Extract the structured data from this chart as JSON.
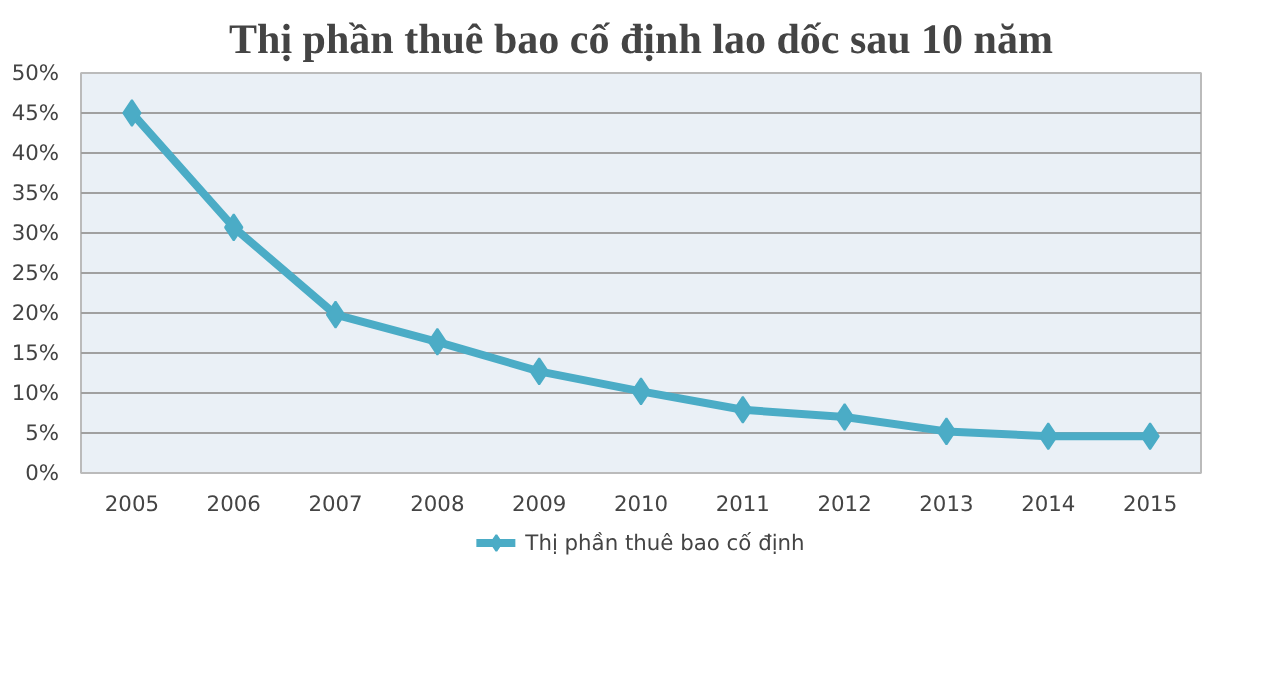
{
  "chart_data": {
    "type": "line",
    "title": "Thị phần thuê bao cố định lao dốc sau 10 năm",
    "categories": [
      "2005",
      "2006",
      "2007",
      "2008",
      "2009",
      "2010",
      "2011",
      "2012",
      "2013",
      "2014",
      "2015"
    ],
    "series": [
      {
        "name": "Thị phần thuê bao cố định",
        "color": "#4bacc6",
        "values": [
          45,
          30.7,
          19.8,
          16.4,
          12.7,
          10.2,
          7.9,
          7.0,
          5.2,
          4.6,
          4.6
        ]
      }
    ],
    "ylim": [
      0,
      50
    ],
    "yticks": [
      {
        "value": 0,
        "label": "0%"
      },
      {
        "value": 5,
        "label": "5%"
      },
      {
        "value": 10,
        "label": "10%"
      },
      {
        "value": 15,
        "label": "15%"
      },
      {
        "value": 20,
        "label": "20%"
      },
      {
        "value": 25,
        "label": "25%"
      },
      {
        "value": 30,
        "label": "30%"
      },
      {
        "value": 35,
        "label": "35%"
      },
      {
        "value": 40,
        "label": "40%"
      },
      {
        "value": 45,
        "label": "45%"
      },
      {
        "value": 50,
        "label": "50%"
      }
    ],
    "grid": "y",
    "legend": "bottom",
    "marker": "diamond",
    "line_style": "solid"
  }
}
